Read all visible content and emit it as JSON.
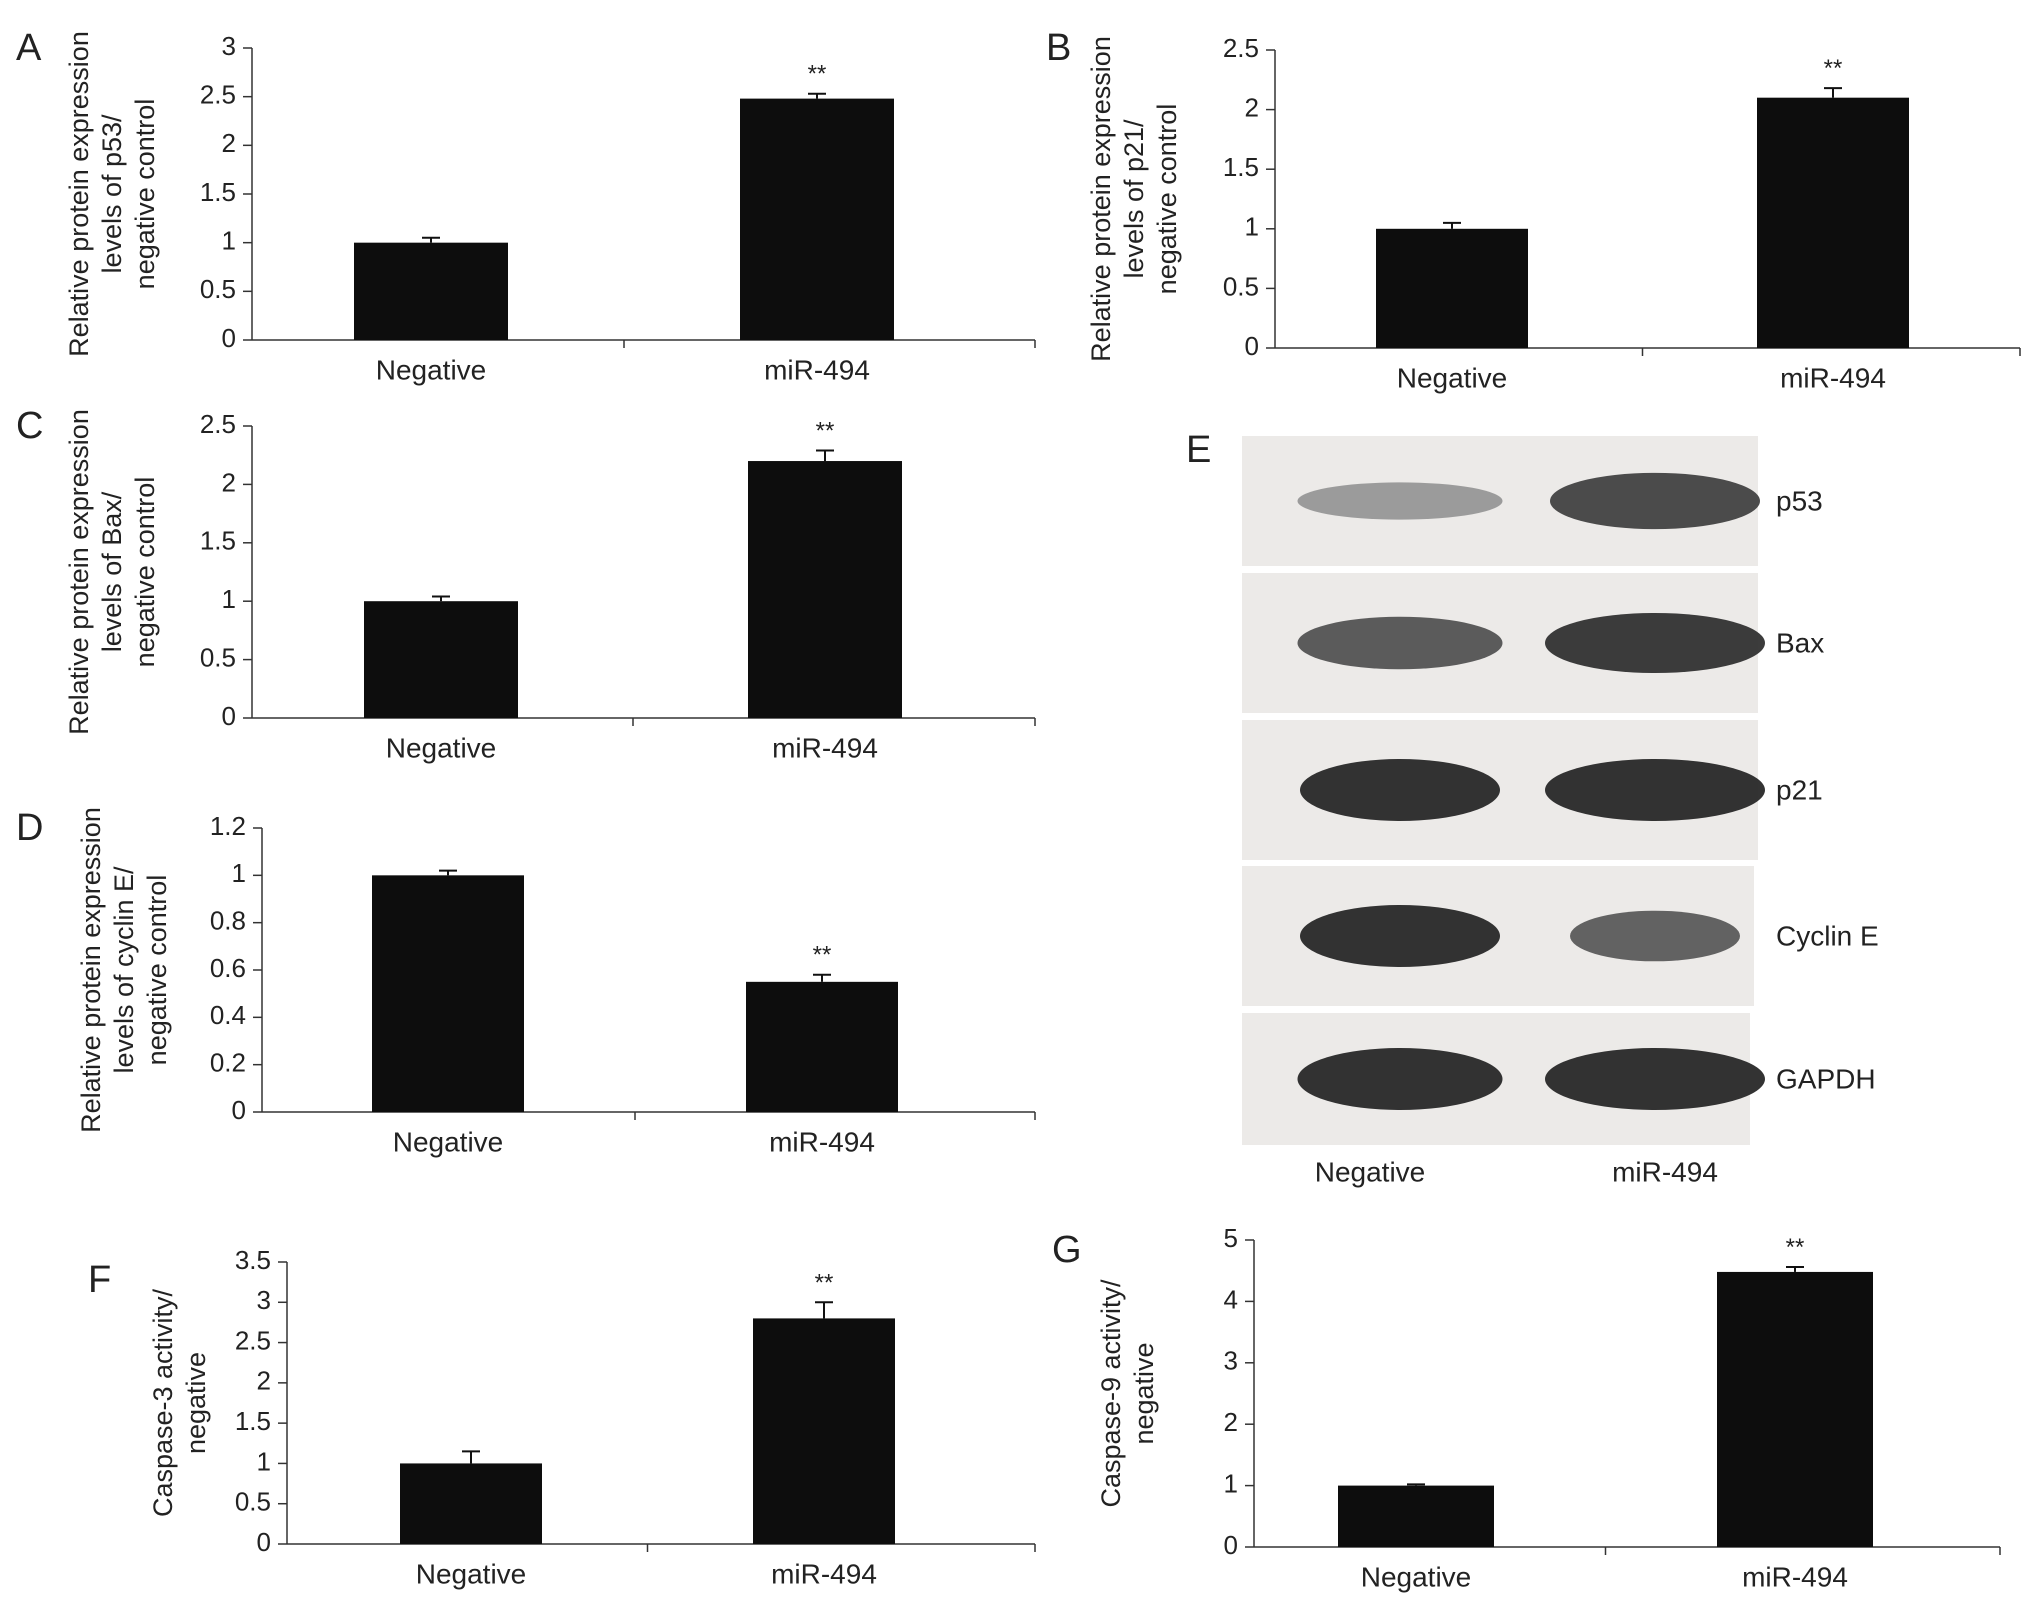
{
  "figure": {
    "panels": [
      {
        "letter": "A",
        "ylabel_lines": [
          "Relative protein expression",
          "levels of p53/",
          "negative control"
        ]
      },
      {
        "letter": "B",
        "ylabel_lines": [
          "Relative protein expression",
          "levels of p21/",
          "negative control"
        ]
      },
      {
        "letter": "C",
        "ylabel_lines": [
          "Relative protein expression",
          "levels of Bax/",
          "negative control"
        ]
      },
      {
        "letter": "D",
        "ylabel_lines": [
          "Relative protein expression",
          "levels of cyclin E/",
          "negative control"
        ]
      },
      {
        "letter": "F",
        "ylabel_lines": [
          "Caspase-3 activity/",
          "negative"
        ]
      },
      {
        "letter": "G",
        "ylabel_lines": [
          "Caspase-9 activity/",
          "negative"
        ]
      }
    ],
    "blot": {
      "letter": "E",
      "bands": [
        {
          "name": "p53",
          "intensity": [
            0.35,
            0.85
          ]
        },
        {
          "name": "Bax",
          "intensity": [
            0.75,
            0.95
          ]
        },
        {
          "name": "p21",
          "intensity": [
            1.0,
            1.0
          ]
        },
        {
          "name": "Cyclin E",
          "intensity": [
            1.0,
            0.7
          ]
        },
        {
          "name": "GAPDH",
          "intensity": [
            1.0,
            1.0
          ]
        }
      ],
      "lanes": [
        "Negative",
        "miR-494"
      ]
    }
  },
  "chart_data": [
    {
      "type": "bar",
      "panel": "A",
      "categories": [
        "Negative",
        "miR-494"
      ],
      "values": [
        1.0,
        2.48
      ],
      "errors": [
        0.05,
        0.05
      ],
      "annotations": [
        "",
        "**"
      ],
      "ylim": [
        0,
        3
      ],
      "yticks": [
        0,
        0.5,
        1,
        1.5,
        2,
        2.5,
        3
      ],
      "xlabel": "",
      "ylabel": "Relative protein expression levels of p53/ negative control"
    },
    {
      "type": "bar",
      "panel": "B",
      "categories": [
        "Negative",
        "miR-494"
      ],
      "values": [
        1.0,
        2.1
      ],
      "errors": [
        0.05,
        0.08
      ],
      "annotations": [
        "",
        "**"
      ],
      "ylim": [
        0,
        2.5
      ],
      "yticks": [
        0,
        0.5,
        1,
        1.5,
        2,
        2.5
      ],
      "xlabel": "",
      "ylabel": "Relative protein expression levels of p21/ negative control"
    },
    {
      "type": "bar",
      "panel": "C",
      "categories": [
        "Negative",
        "miR-494"
      ],
      "values": [
        1.0,
        2.2
      ],
      "errors": [
        0.04,
        0.09
      ],
      "annotations": [
        "",
        "**"
      ],
      "ylim": [
        0,
        2.5
      ],
      "yticks": [
        0,
        0.5,
        1,
        1.5,
        2,
        2.5
      ],
      "xlabel": "",
      "ylabel": "Relative protein expression levels of Bax/ negative control"
    },
    {
      "type": "bar",
      "panel": "D",
      "categories": [
        "Negative",
        "miR-494"
      ],
      "values": [
        1.0,
        0.55
      ],
      "errors": [
        0.02,
        0.03
      ],
      "annotations": [
        "",
        "**"
      ],
      "ylim": [
        0,
        1.2
      ],
      "yticks": [
        0,
        0.2,
        0.4,
        0.6,
        0.8,
        1,
        1.2
      ],
      "xlabel": "",
      "ylabel": "Relative protein expression levels of cyclin E/ negative control"
    },
    {
      "type": "bar",
      "panel": "F",
      "categories": [
        "Negative",
        "miR-494"
      ],
      "values": [
        1.0,
        2.8
      ],
      "errors": [
        0.15,
        0.2
      ],
      "annotations": [
        "",
        "**"
      ],
      "ylim": [
        0,
        3.5
      ],
      "yticks": [
        0,
        0.5,
        1,
        1.5,
        2,
        2.5,
        3,
        3.5
      ],
      "xlabel": "",
      "ylabel": "Caspase-3 activity/ negative"
    },
    {
      "type": "bar",
      "panel": "G",
      "categories": [
        "Negative",
        "miR-494"
      ],
      "values": [
        1.0,
        4.48
      ],
      "errors": [
        0.02,
        0.08
      ],
      "annotations": [
        "",
        "**"
      ],
      "ylim": [
        0,
        5
      ],
      "yticks": [
        0,
        1,
        2,
        3,
        4,
        5
      ],
      "xlabel": "",
      "ylabel": "Caspase-9 activity/ negative"
    }
  ]
}
